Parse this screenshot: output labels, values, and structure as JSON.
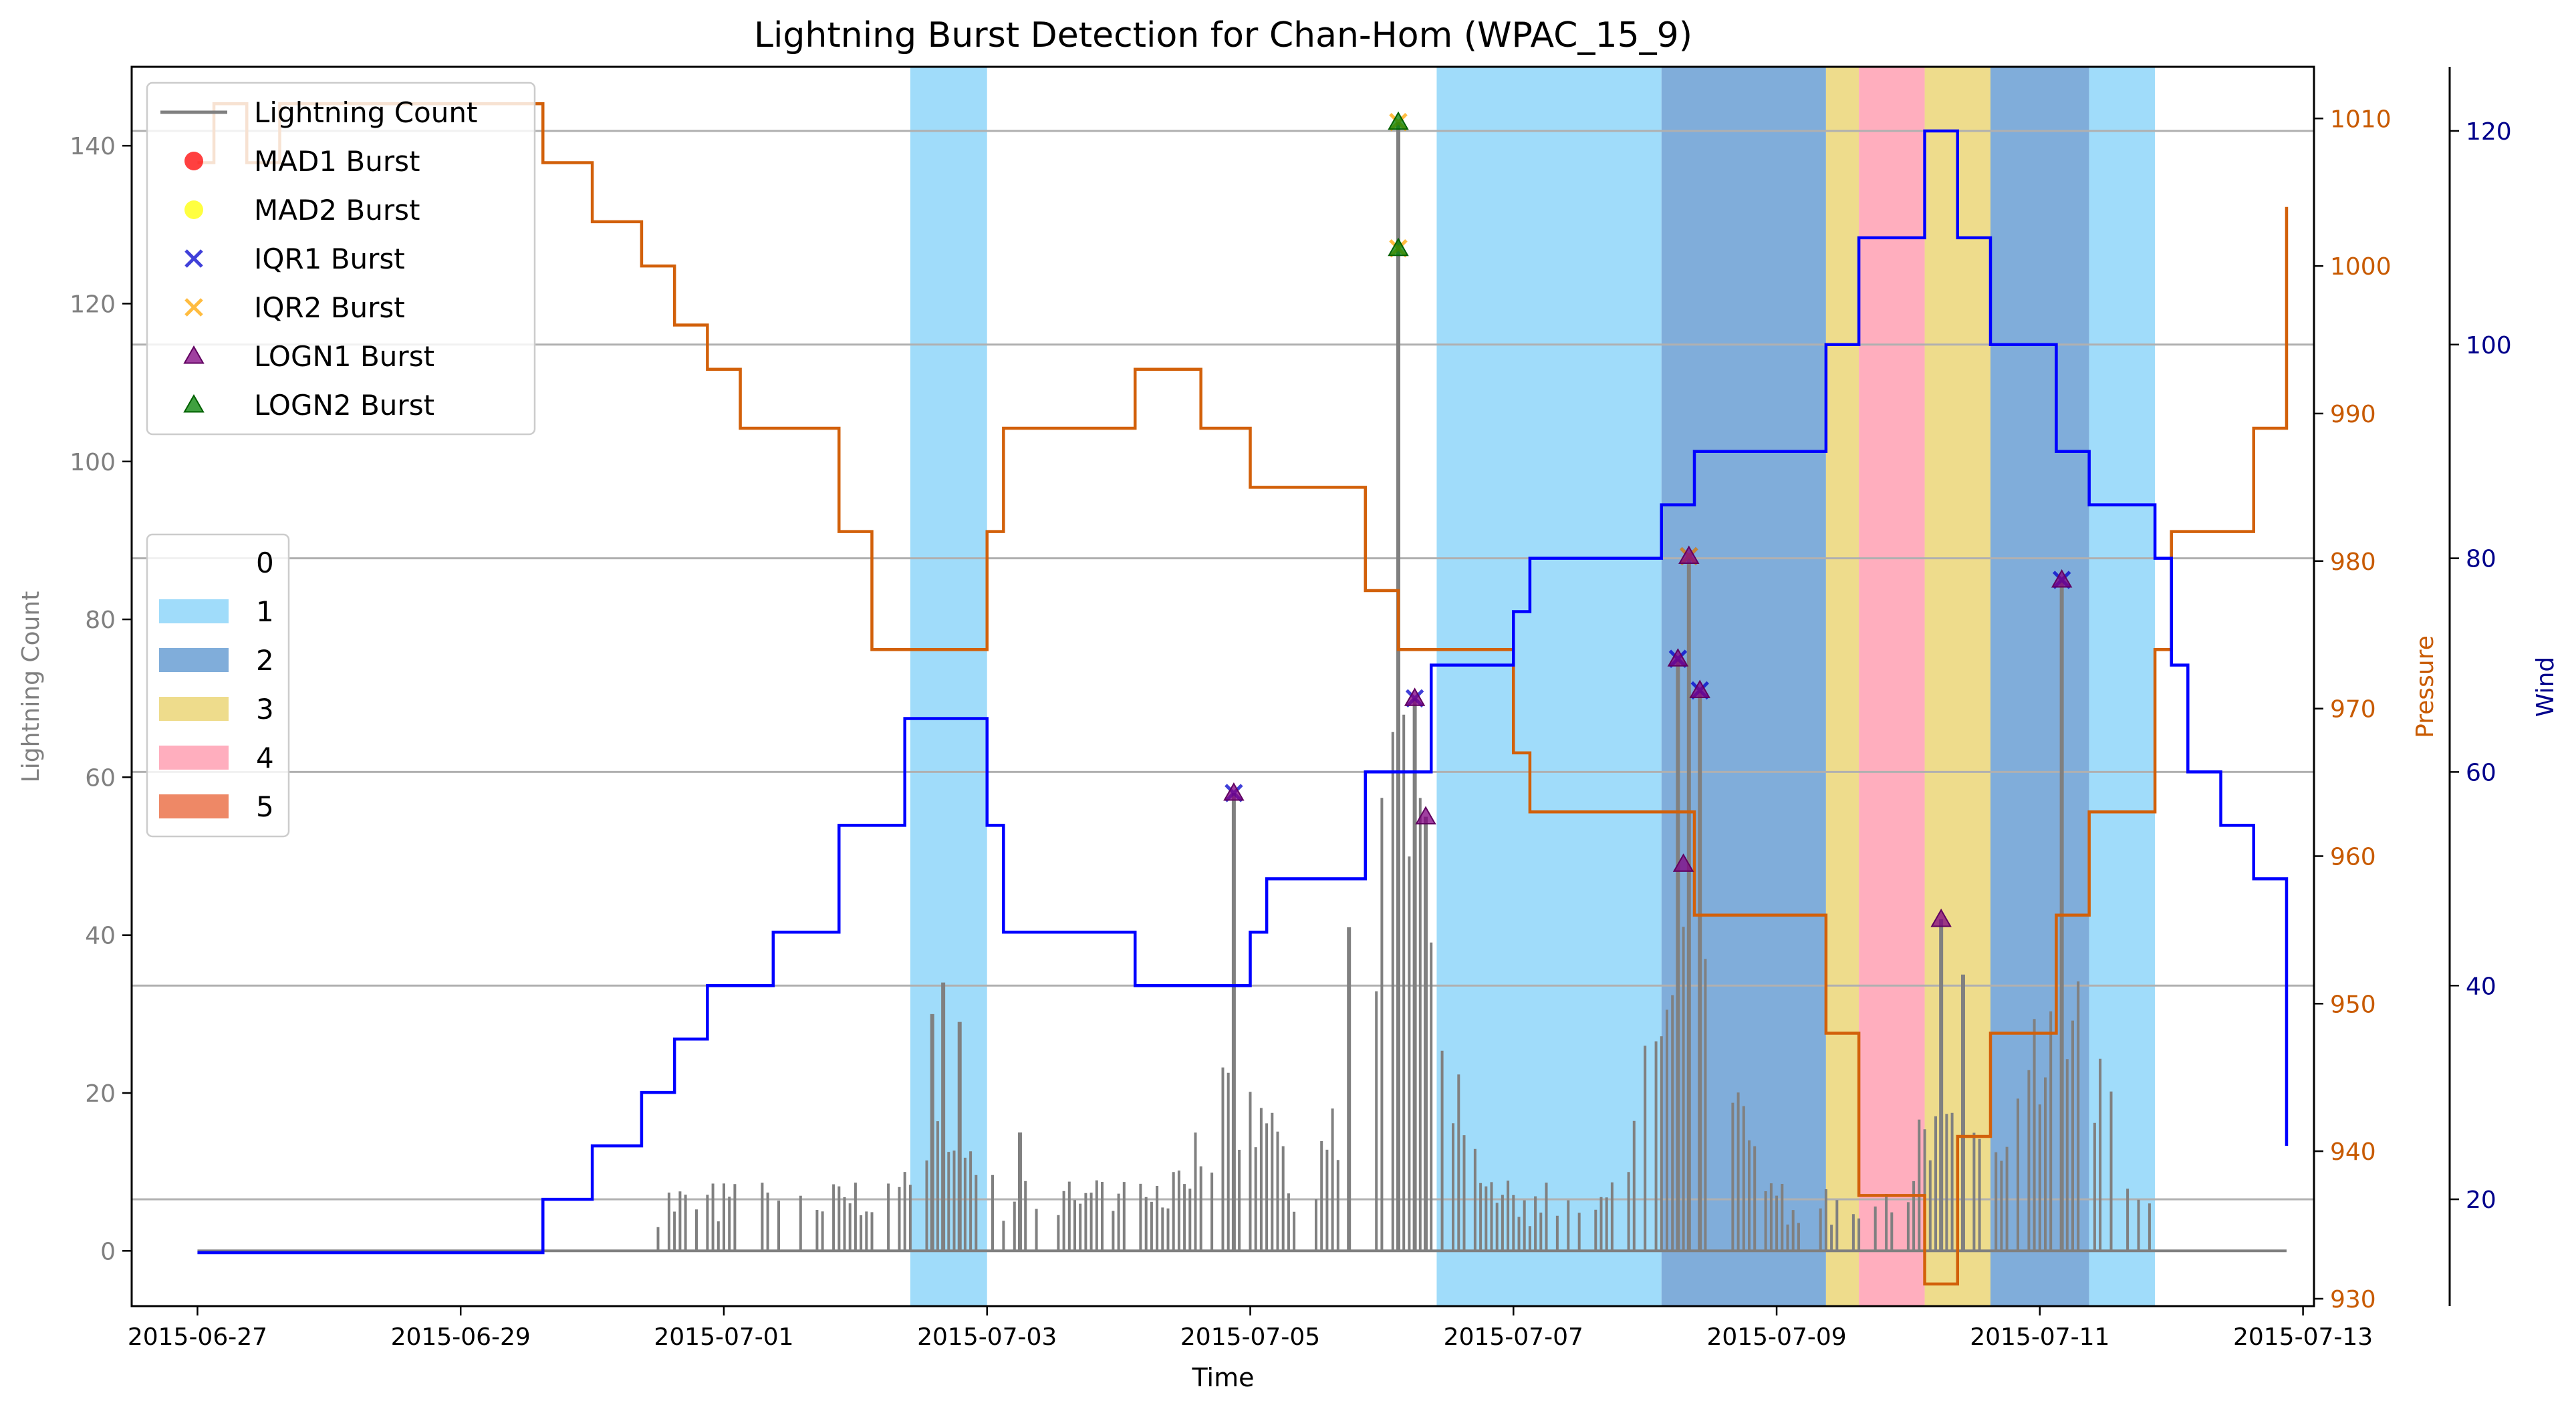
{
  "chart_data": {
    "type": "line",
    "title": "Lightning Burst Detection for Chan-Hom (WPAC_15_9)",
    "xlabel": "Time",
    "ylabel_left": "Lightning Count",
    "ylabel_right1": "Pressure",
    "ylabel_right2": "Wind",
    "x_range": [
      "2015-06-26T12:00",
      "2015-07-13T02:00"
    ],
    "x_ticks": [
      "2015-06-27",
      "2015-06-29",
      "2015-07-01",
      "2015-07-03",
      "2015-07-05",
      "2015-07-07",
      "2015-07-09",
      "2015-07-11",
      "2015-07-13"
    ],
    "y_left": {
      "lim": [
        -7,
        150
      ],
      "ticks": [
        0,
        20,
        40,
        60,
        80,
        100,
        120,
        140
      ]
    },
    "y_pressure": {
      "lim": [
        929.5,
        1013.5
      ],
      "ticks": [
        930,
        940,
        950,
        960,
        970,
        980,
        990,
        1000,
        1010
      ]
    },
    "y_wind": {
      "lim": [
        10,
        126
      ],
      "ticks": [
        20,
        40,
        60,
        80,
        100,
        120
      ]
    },
    "grid": "horizontal",
    "colors": {
      "lightning": "#808080",
      "pressure": "#d2600a",
      "wind": "#0000ff",
      "cat1": "#a0dcfa",
      "cat2": "#80adda",
      "cat3": "#eedc8c",
      "cat4": "#ffaebe",
      "cat5": "#ee8866",
      "pressure_axis": "#c85a00",
      "wind_axis": "#00008b"
    },
    "category_spans": [
      {
        "start": "2015-07-02T10:00",
        "end": "2015-07-03T00:00",
        "category": "1"
      },
      {
        "start": "2015-07-06T10:00",
        "end": "2015-07-08T03:00",
        "category": "1"
      },
      {
        "start": "2015-07-08T03:00",
        "end": "2015-07-09T09:00",
        "category": "2"
      },
      {
        "start": "2015-07-09T09:00",
        "end": "2015-07-09T15:00",
        "category": "3"
      },
      {
        "start": "2015-07-09T15:00",
        "end": "2015-07-10T03:00",
        "category": "4"
      },
      {
        "start": "2015-07-10T03:00",
        "end": "2015-07-10T15:00",
        "category": "3"
      },
      {
        "start": "2015-07-10T15:00",
        "end": "2015-07-11T09:00",
        "category": "2"
      },
      {
        "start": "2015-07-11T09:00",
        "end": "2015-07-11T21:00",
        "category": "1"
      }
    ],
    "series": [
      {
        "name": "Pressure",
        "axis": "pressure",
        "step": true,
        "x": [
          "2015-06-27T00:00",
          "2015-06-27T03:00",
          "2015-06-27T09:00",
          "2015-06-27T15:00",
          "2015-06-28T00:00",
          "2015-06-29T15:00",
          "2015-06-30T00:00",
          "2015-06-30T09:00",
          "2015-06-30T15:00",
          "2015-06-30T21:00",
          "2015-07-01T03:00",
          "2015-07-01T09:00",
          "2015-07-01T21:00",
          "2015-07-02T03:00",
          "2015-07-02T09:00",
          "2015-07-03T00:00",
          "2015-07-03T03:00",
          "2015-07-04T03:00",
          "2015-07-04T15:00",
          "2015-07-05T00:00",
          "2015-07-05T03:00",
          "2015-07-05T21:00",
          "2015-07-06T03:00",
          "2015-07-06T09:00",
          "2015-07-07T00:00",
          "2015-07-07T03:00",
          "2015-07-08T03:00",
          "2015-07-08T09:00",
          "2015-07-09T09:00",
          "2015-07-09T15:00",
          "2015-07-10T03:00",
          "2015-07-10T09:00",
          "2015-07-10T15:00",
          "2015-07-11T03:00",
          "2015-07-11T09:00",
          "2015-07-11T21:00",
          "2015-07-12T00:00",
          "2015-07-12T15:00",
          "2015-07-12T21:00"
        ],
        "values": [
          1007,
          1011,
          1007,
          1011,
          1011,
          1007,
          1003,
          1000,
          996,
          993,
          989,
          989,
          982,
          974,
          974,
          982,
          989,
          993,
          989,
          985,
          985,
          978,
          974,
          974,
          967,
          963,
          963,
          956,
          948,
          937,
          931,
          941,
          948,
          956,
          963,
          974,
          982,
          989,
          1004
        ]
      },
      {
        "name": "Wind",
        "axis": "wind",
        "step": true,
        "x": [
          "2015-06-27T00:00",
          "2015-06-29T15:00",
          "2015-06-30T00:00",
          "2015-06-30T09:00",
          "2015-06-30T15:00",
          "2015-06-30T21:00",
          "2015-07-01T09:00",
          "2015-07-01T21:00",
          "2015-07-02T09:00",
          "2015-07-03T00:00",
          "2015-07-03T03:00",
          "2015-07-04T03:00",
          "2015-07-05T00:00",
          "2015-07-05T03:00",
          "2015-07-05T21:00",
          "2015-07-06T09:00",
          "2015-07-07T00:00",
          "2015-07-07T03:00",
          "2015-07-08T03:00",
          "2015-07-08T09:00",
          "2015-07-09T09:00",
          "2015-07-09T15:00",
          "2015-07-10T03:00",
          "2015-07-10T09:00",
          "2015-07-10T15:00",
          "2015-07-11T03:00",
          "2015-07-11T09:00",
          "2015-07-11T21:00",
          "2015-07-12T00:00",
          "2015-07-12T03:00",
          "2015-07-12T09:00",
          "2015-07-12T15:00",
          "2015-07-12T21:00"
        ],
        "values": [
          15,
          20,
          25,
          30,
          35,
          40,
          45,
          55,
          65,
          55,
          45,
          40,
          45,
          50,
          60,
          70,
          75,
          80,
          85,
          90,
          100,
          110,
          120,
          110,
          100,
          90,
          85,
          80,
          70,
          60,
          55,
          50,
          25
        ]
      },
      {
        "name": "Lightning Count",
        "axis": "left",
        "x": [
          "2015-07-02T14:00",
          "2015-07-02T16:00",
          "2015-07-02T19:00",
          "2015-07-03T06:00",
          "2015-07-04T21:00",
          "2015-07-05T18:00",
          "2015-07-06T03:00",
          "2015-07-06T06:00",
          "2015-07-06T08:00",
          "2015-07-08T06:00",
          "2015-07-08T08:00",
          "2015-07-08T10:00",
          "2015-07-10T06:00",
          "2015-07-10T10:00",
          "2015-07-11T04:00"
        ],
        "values": [
          30,
          34,
          29,
          15,
          58,
          41,
          143,
          70,
          55,
          75,
          88,
          71,
          42,
          35,
          85
        ]
      }
    ],
    "bursts": {
      "MAD1 Burst": [],
      "MAD2 Burst": [],
      "IQR1 Burst": [
        {
          "x": "2015-07-04T21:00",
          "y": 58
        },
        {
          "x": "2015-07-06T06:00",
          "y": 70
        },
        {
          "x": "2015-07-08T06:00",
          "y": 75
        },
        {
          "x": "2015-07-08T08:00",
          "y": 88
        },
        {
          "x": "2015-07-08T10:00",
          "y": 71
        },
        {
          "x": "2015-07-11T04:00",
          "y": 85
        }
      ],
      "IQR2 Burst": [
        {
          "x": "2015-07-06T03:00",
          "y": 143
        },
        {
          "x": "2015-07-06T03:00",
          "y": 127
        },
        {
          "x": "2015-07-08T08:00",
          "y": 88
        }
      ],
      "LOGN1 Burst": [
        {
          "x": "2015-07-04T21:00",
          "y": 58
        },
        {
          "x": "2015-07-06T06:00",
          "y": 70
        },
        {
          "x": "2015-07-06T08:00",
          "y": 55
        },
        {
          "x": "2015-07-08T06:00",
          "y": 75
        },
        {
          "x": "2015-07-08T07:00",
          "y": 49
        },
        {
          "x": "2015-07-08T08:00",
          "y": 88
        },
        {
          "x": "2015-07-08T10:00",
          "y": 71
        },
        {
          "x": "2015-07-10T06:00",
          "y": 42
        },
        {
          "x": "2015-07-11T04:00",
          "y": 85
        }
      ],
      "LOGN2 Burst": [
        {
          "x": "2015-07-06T03:00",
          "y": 143
        },
        {
          "x": "2015-07-06T03:00",
          "y": 127
        }
      ]
    },
    "legend_main": [
      "Lightning Count",
      "MAD1 Burst",
      "MAD2 Burst",
      "IQR1 Burst",
      "IQR2 Burst",
      "LOGN1 Burst",
      "LOGN2 Burst"
    ],
    "legend_categories": [
      "0",
      "1",
      "2",
      "3",
      "4",
      "5"
    ],
    "legend_placement": "top-left"
  }
}
